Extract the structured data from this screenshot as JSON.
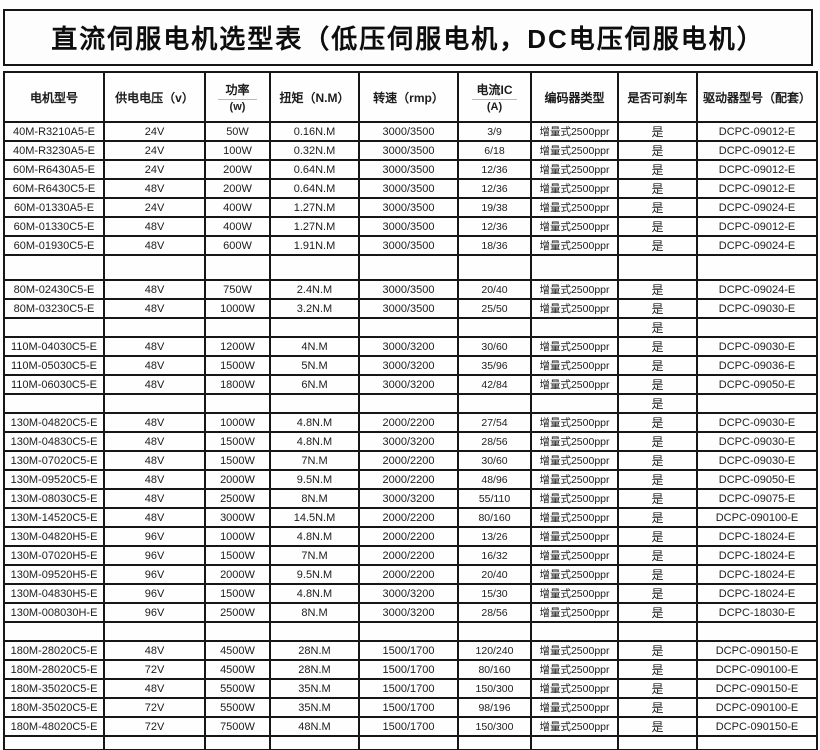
{
  "title": "直流伺服电机选型表（低压伺服电机，DC电压伺服电机）",
  "accent_colors": {
    "border": "#161616",
    "text": "#1c1c1c",
    "background": "#fdfdfd"
  },
  "table": {
    "columns": [
      {
        "key": "model",
        "label": "电机型号",
        "sub": ""
      },
      {
        "key": "voltage",
        "label": "供电电压（v）",
        "sub": ""
      },
      {
        "key": "power",
        "label": "功率",
        "sub": "(w)"
      },
      {
        "key": "torque",
        "label": "扭矩（N.M）",
        "sub": ""
      },
      {
        "key": "speed",
        "label": "转速（rmp）",
        "sub": ""
      },
      {
        "key": "current",
        "label": "电流IC",
        "sub": "(A)"
      },
      {
        "key": "encoder",
        "label": "编码器类型",
        "sub": ""
      },
      {
        "key": "brake",
        "label": "是否可刹车",
        "sub": ""
      },
      {
        "key": "driver",
        "label": "驱动器型号（配套）",
        "sub": ""
      }
    ],
    "rows": [
      {
        "cells": [
          "40M-R3210A5-E",
          "24V",
          "50W",
          "0.16N.M",
          "3000/3500",
          "3/9",
          "增量式2500ppr",
          "是",
          "DCPC-09012-E"
        ]
      },
      {
        "cells": [
          "40M-R3230A5-E",
          "24V",
          "100W",
          "0.32N.M",
          "3000/3500",
          "6/18",
          "增量式2500ppr",
          "是",
          "DCPC-09012-E"
        ]
      },
      {
        "cells": [
          "60M-R6430A5-E",
          "24V",
          "200W",
          "0.64N.M",
          "3000/3500",
          "12/36",
          "增量式2500ppr",
          "是",
          "DCPC-09012-E"
        ]
      },
      {
        "cells": [
          "60M-R6430C5-E",
          "48V",
          "200W",
          "0.64N.M",
          "3000/3500",
          "12/36",
          "增量式2500ppr",
          "是",
          "DCPC-09012-E"
        ]
      },
      {
        "cells": [
          "60M-01330A5-E",
          "24V",
          "400W",
          "1.27N.M",
          "3000/3500",
          "19/38",
          "增量式2500ppr",
          "是",
          "DCPC-09024-E"
        ]
      },
      {
        "cells": [
          "60M-01330C5-E",
          "48V",
          "400W",
          "1.27N.M",
          "3000/3500",
          "12/36",
          "增量式2500ppr",
          "是",
          "DCPC-09012-E"
        ]
      },
      {
        "cells": [
          "60M-01930C5-E",
          "48V",
          "600W",
          "1.91N.M",
          "3000/3500",
          "18/36",
          "增量式2500ppr",
          "是",
          "DCPC-09024-E"
        ]
      },
      {
        "cells": [
          "",
          "",
          "",
          "",
          "",
          "",
          "",
          "",
          ""
        ]
      },
      {
        "cells": [
          "80M-02430C5-E",
          "48V",
          "750W",
          "2.4N.M",
          "3000/3500",
          "20/40",
          "增量式2500ppr",
          "是",
          "DCPC-09024-E"
        ]
      },
      {
        "cells": [
          "80M-03230C5-E",
          "48V",
          "1000W",
          "3.2N.M",
          "3000/3500",
          "25/50",
          "增量式2500ppr",
          "是",
          "DCPC-09030-E"
        ]
      },
      {
        "cells": [
          "",
          "",
          "",
          "",
          "",
          "",
          "",
          "是",
          ""
        ]
      },
      {
        "cells": [
          "110M-04030C5-E",
          "48V",
          "1200W",
          "4N.M",
          "3000/3200",
          "30/60",
          "增量式2500ppr",
          "是",
          "DCPC-09030-E"
        ]
      },
      {
        "cells": [
          "110M-05030C5-E",
          "48V",
          "1500W",
          "5N.M",
          "3000/3200",
          "35/96",
          "增量式2500ppr",
          "是",
          "DCPC-09036-E"
        ]
      },
      {
        "cells": [
          "110M-06030C5-E",
          "48V",
          "1800W",
          "6N.M",
          "3000/3200",
          "42/84",
          "增量式2500ppr",
          "是",
          "DCPC-09050-E"
        ]
      },
      {
        "cells": [
          "",
          "",
          "",
          "",
          "",
          "",
          "",
          "是",
          ""
        ]
      },
      {
        "cells": [
          "130M-04820C5-E",
          "48V",
          "1000W",
          "4.8N.M",
          "2000/2200",
          "27/54",
          "增量式2500ppr",
          "是",
          "DCPC-09030-E"
        ]
      },
      {
        "cells": [
          "130M-04830C5-E",
          "48V",
          "1500W",
          "4.8N.M",
          "3000/3200",
          "28/56",
          "增量式2500ppr",
          "是",
          "DCPC-09030-E"
        ]
      },
      {
        "cells": [
          "130M-07020C5-E",
          "48V",
          "1500W",
          "7N.M",
          "2000/2200",
          "30/60",
          "增量式2500ppr",
          "是",
          "DCPC-09030-E"
        ]
      },
      {
        "cells": [
          "130M-09520C5-E",
          "48V",
          "2000W",
          "9.5N.M",
          "2000/2200",
          "48/96",
          "增量式2500ppr",
          "是",
          "DCPC-09050-E"
        ]
      },
      {
        "cells": [
          "130M-08030C5-E",
          "48V",
          "2500W",
          "8N.M",
          "3000/3200",
          "55/110",
          "增量式2500ppr",
          "是",
          "DCPC-09075-E"
        ]
      },
      {
        "cells": [
          "130M-14520C5-E",
          "48V",
          "3000W",
          "14.5N.M",
          "2000/2200",
          "80/160",
          "增量式2500ppr",
          "是",
          "DCPC-090100-E"
        ]
      },
      {
        "cells": [
          "130M-04820H5-E",
          "96V",
          "1000W",
          "4.8N.M",
          "2000/2200",
          "13/26",
          "增量式2500ppr",
          "是",
          "DCPC-18024-E"
        ]
      },
      {
        "cells": [
          "130M-07020H5-E",
          "96V",
          "1500W",
          "7N.M",
          "2000/2200",
          "16/32",
          "增量式2500ppr",
          "是",
          "DCPC-18024-E"
        ]
      },
      {
        "cells": [
          "130M-09520H5-E",
          "96V",
          "2000W",
          "9.5N.M",
          "2000/2200",
          "20/40",
          "增量式2500ppr",
          "是",
          "DCPC-18024-E"
        ]
      },
      {
        "cells": [
          "130M-04830H5-E",
          "96V",
          "1500W",
          "4.8N.M",
          "3000/3200",
          "15/30",
          "增量式2500ppr",
          "是",
          "DCPC-18024-E"
        ]
      },
      {
        "cells": [
          "130M-008030H-E",
          "96V",
          "2500W",
          "8N.M",
          "3000/3200",
          "28/56",
          "增量式2500ppr",
          "是",
          "DCPC-18030-E"
        ]
      },
      {
        "cells": [
          "",
          "",
          "",
          "",
          "",
          "",
          "",
          "",
          ""
        ]
      },
      {
        "cells": [
          "180M-28020C5-E",
          "48V",
          "4500W",
          "28N.M",
          "1500/1700",
          "120/240",
          "增量式2500ppr",
          "是",
          "DCPC-090150-E"
        ]
      },
      {
        "cells": [
          "180M-28020C5-E",
          "72V",
          "4500W",
          "28N.M",
          "1500/1700",
          "80/160",
          "增量式2500ppr",
          "是",
          "DCPC-090100-E"
        ]
      },
      {
        "cells": [
          "180M-35020C5-E",
          "48V",
          "5500W",
          "35N.M",
          "1500/1700",
          "150/300",
          "增量式2500ppr",
          "是",
          "DCPC-090150-E"
        ]
      },
      {
        "cells": [
          "180M-35020C5-E",
          "72V",
          "5500W",
          "35N.M",
          "1500/1700",
          "98/196",
          "增量式2500ppr",
          "是",
          "DCPC-090100-E"
        ]
      },
      {
        "cells": [
          "180M-48020C5-E",
          "72V",
          "7500W",
          "48N.M",
          "1500/1700",
          "150/300",
          "增量式2500ppr",
          "是",
          "DCPC-090150-E"
        ]
      },
      {
        "cells": [
          "",
          "",
          "",
          "",
          "",
          "",
          "",
          "",
          ""
        ]
      }
    ]
  }
}
